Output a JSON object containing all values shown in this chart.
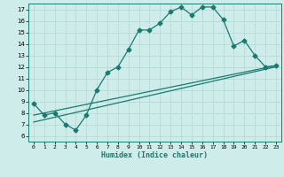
{
  "xlabel": "Humidex (Indice chaleur)",
  "background_color": "#ceecea",
  "grid_major_color": "#b8dbd8",
  "grid_minor_color": "#d4ecea",
  "line_color": "#1a7a6e",
  "xlim": [
    -0.5,
    23.5
  ],
  "ylim": [
    5.5,
    17.5
  ],
  "xticks": [
    0,
    1,
    2,
    3,
    4,
    5,
    6,
    7,
    8,
    9,
    10,
    11,
    12,
    13,
    14,
    15,
    16,
    17,
    18,
    19,
    20,
    21,
    22,
    23
  ],
  "yticks": [
    6,
    7,
    8,
    9,
    10,
    11,
    12,
    13,
    14,
    15,
    16,
    17
  ],
  "curve1_x": [
    0,
    1,
    2,
    3,
    4,
    5,
    6,
    7,
    8,
    9,
    10,
    11,
    12,
    13,
    14,
    15,
    16,
    17,
    18,
    19,
    20,
    21,
    22,
    23
  ],
  "curve1_y": [
    8.8,
    7.8,
    8.0,
    7.0,
    6.5,
    7.8,
    10.0,
    11.5,
    12.0,
    13.5,
    15.2,
    15.2,
    15.8,
    16.8,
    17.2,
    16.5,
    17.2,
    17.2,
    16.1,
    13.8,
    14.3,
    13.0,
    12.0,
    12.1
  ],
  "curve2_x": [
    0,
    23
  ],
  "curve2_y": [
    7.8,
    12.1
  ],
  "curve3_x": [
    0,
    23
  ],
  "curve3_y": [
    7.2,
    12.0
  ],
  "markersize": 2.5,
  "linewidth": 0.9
}
